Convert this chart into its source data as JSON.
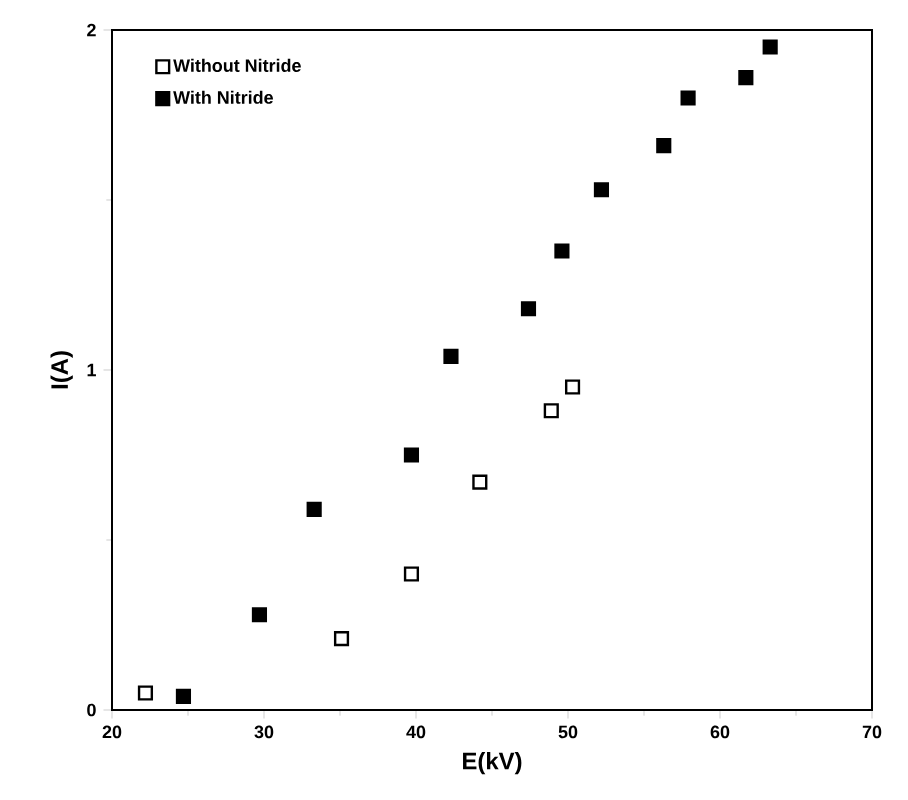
{
  "chart_data": {
    "type": "scatter",
    "xlabel": "E(kV)",
    "ylabel": "I(A)",
    "xlim": [
      20,
      70
    ],
    "ylim": [
      0,
      2
    ],
    "xticks": [
      20,
      30,
      40,
      50,
      60,
      70
    ],
    "yticks": [
      0,
      1,
      2
    ],
    "legend": "top left",
    "marker": "square",
    "grid": false,
    "series": [
      {
        "name": "Without Nitride",
        "color": "#ffffff",
        "x": [
          22.2,
          35.1,
          39.7,
          44.2,
          48.9,
          50.3
        ],
        "values": [
          0.05,
          0.21,
          0.4,
          0.67,
          0.88,
          0.95
        ]
      },
      {
        "name": "With Nitride",
        "color": "#000000",
        "x": [
          24.7,
          29.7,
          33.3,
          39.7,
          42.3,
          47.4,
          49.6,
          52.2,
          56.3,
          57.9,
          61.7,
          63.3
        ],
        "values": [
          0.04,
          0.28,
          0.59,
          0.75,
          1.04,
          1.18,
          1.35,
          1.53,
          1.66,
          1.8,
          1.86,
          1.95
        ]
      }
    ]
  }
}
